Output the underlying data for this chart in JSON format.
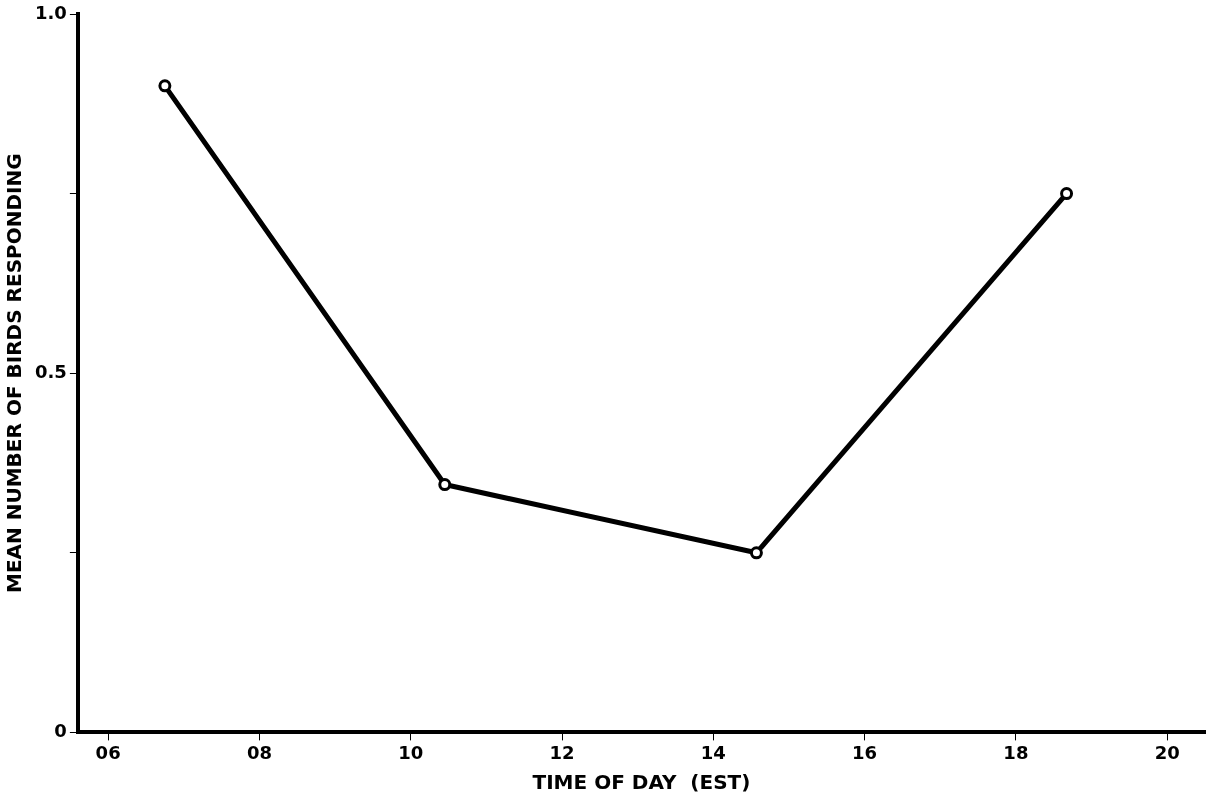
{
  "chart_data": {
    "type": "line",
    "xlabel": "TIME OF DAY  (EST)",
    "ylabel": "MEAN NUMBER OF BIRDS RESPONDING",
    "x": [
      6.75,
      10.45,
      14.57,
      18.67
    ],
    "values": [
      0.9,
      0.345,
      0.25,
      0.75
    ],
    "color": "#000000",
    "marker": "circle",
    "line_style": "solid",
    "grid": false,
    "legend": false,
    "xlim": [
      5.6,
      20.5
    ],
    "xticks": [
      {
        "value": 6,
        "label": "06"
      },
      {
        "value": 8,
        "label": "08"
      },
      10,
      12,
      14,
      16,
      18,
      20
    ],
    "ylim": [
      0,
      1.0
    ],
    "yticks": [
      0,
      {
        "value": 0.25,
        "label": null
      },
      0.5,
      {
        "value": 0.75,
        "label": null
      },
      {
        "value": 1.0,
        "label": "1.0"
      }
    ]
  }
}
